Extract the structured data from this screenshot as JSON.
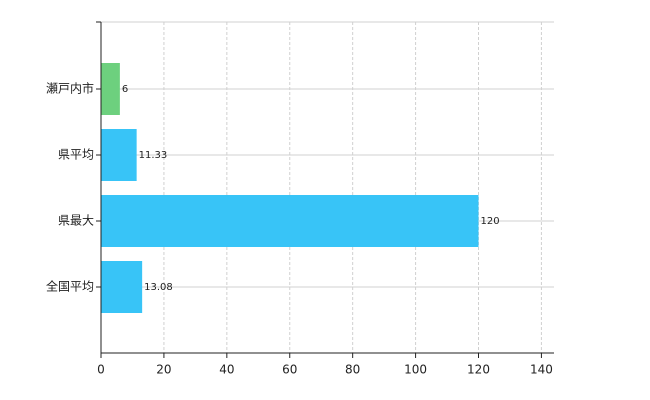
{
  "chart_data": {
    "type": "bar",
    "orientation": "horizontal",
    "categories": [
      "瀬戸内市",
      "県平均",
      "県最大",
      "全国平均"
    ],
    "values": [
      6,
      11.33,
      120,
      13.08
    ],
    "colors": [
      "#6dd07e",
      "#38c4f7",
      "#38c4f7",
      "#38c4f7"
    ],
    "xlim": [
      0,
      144
    ],
    "xticks": [
      0,
      20,
      40,
      60,
      80,
      100,
      120,
      140
    ],
    "grid": true
  }
}
